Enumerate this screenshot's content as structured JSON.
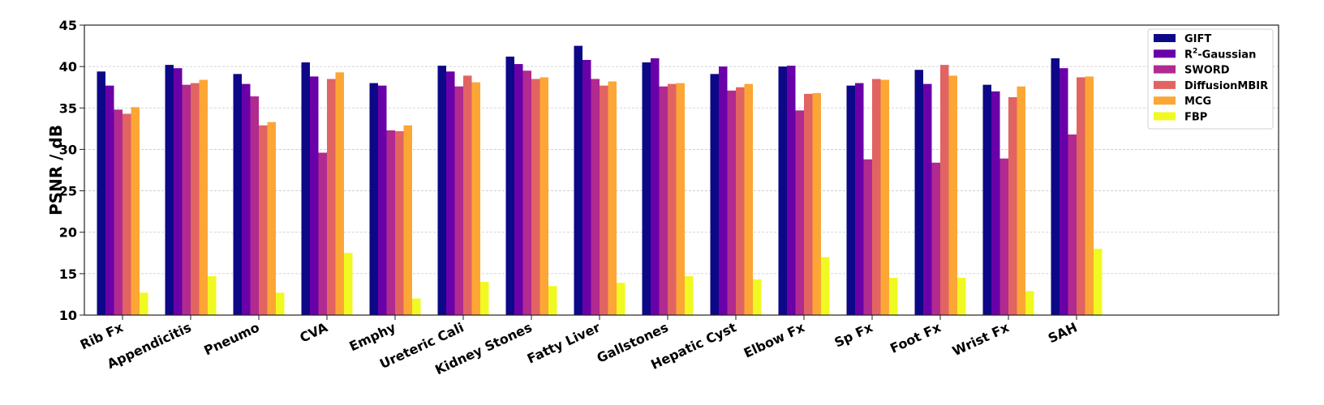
{
  "chart_data": {
    "type": "bar",
    "title": "",
    "xlabel": "",
    "ylabel": "PSNR / dB",
    "ylim": [
      10,
      45
    ],
    "yticks": [
      10,
      15,
      20,
      25,
      30,
      35,
      40,
      45
    ],
    "grid": true,
    "legend_position": "top-right",
    "categories": [
      "Rib Fx",
      "Appendicitis",
      "Pneumo",
      "CVA",
      "Emphy",
      "Ureteric Cali",
      "Kidney Stones",
      "Fatty Liver",
      "Gallstones",
      "Hepatic Cyst",
      "Elbow Fx",
      "Sp Fx",
      "Foot Fx",
      "Wrist Fx",
      "SAH"
    ],
    "series": [
      {
        "name": "GIFT",
        "legend_base": "GIFT",
        "legend_sup": "",
        "legend_rest": "",
        "color": "#0d0887",
        "values": [
          39.4,
          40.2,
          39.1,
          40.5,
          38.0,
          40.1,
          41.2,
          42.5,
          40.5,
          39.1,
          40.0,
          37.7,
          39.6,
          37.8,
          41.0
        ]
      },
      {
        "name": "R2-Gaussian",
        "legend_base": "R",
        "legend_sup": "2",
        "legend_rest": "-Gaussian",
        "color": "#6a00a8",
        "values": [
          37.7,
          39.8,
          37.9,
          38.8,
          37.7,
          39.4,
          40.3,
          40.8,
          41.0,
          40.0,
          40.1,
          38.0,
          37.9,
          37.0,
          39.8
        ]
      },
      {
        "name": "SWORD",
        "legend_base": "SWORD",
        "legend_sup": "",
        "legend_rest": "",
        "color": "#b12a90",
        "values": [
          34.8,
          37.8,
          36.4,
          29.6,
          32.3,
          37.6,
          39.5,
          38.5,
          37.6,
          37.1,
          34.7,
          28.8,
          28.4,
          28.9,
          31.8
        ]
      },
      {
        "name": "DiffusionMBIR",
        "legend_base": "DiffusionMBIR",
        "legend_sup": "",
        "legend_rest": "",
        "color": "#e16462",
        "values": [
          34.3,
          38.0,
          32.9,
          38.5,
          32.2,
          38.9,
          38.5,
          37.7,
          37.9,
          37.5,
          36.7,
          38.5,
          40.2,
          36.3,
          38.7
        ]
      },
      {
        "name": "MCG",
        "legend_base": "MCG",
        "legend_sup": "",
        "legend_rest": "",
        "color": "#fca636",
        "values": [
          35.1,
          38.4,
          33.3,
          39.3,
          32.9,
          38.1,
          38.7,
          38.2,
          38.0,
          37.9,
          36.8,
          38.4,
          38.9,
          37.6,
          38.8
        ]
      },
      {
        "name": "FBP",
        "legend_base": "FBP",
        "legend_sup": "",
        "legend_rest": "",
        "color": "#f0f921",
        "values": [
          12.7,
          14.7,
          12.7,
          17.5,
          12.0,
          14.0,
          13.5,
          13.9,
          14.7,
          14.3,
          17.0,
          14.5,
          14.5,
          12.9,
          18.0
        ]
      }
    ]
  }
}
